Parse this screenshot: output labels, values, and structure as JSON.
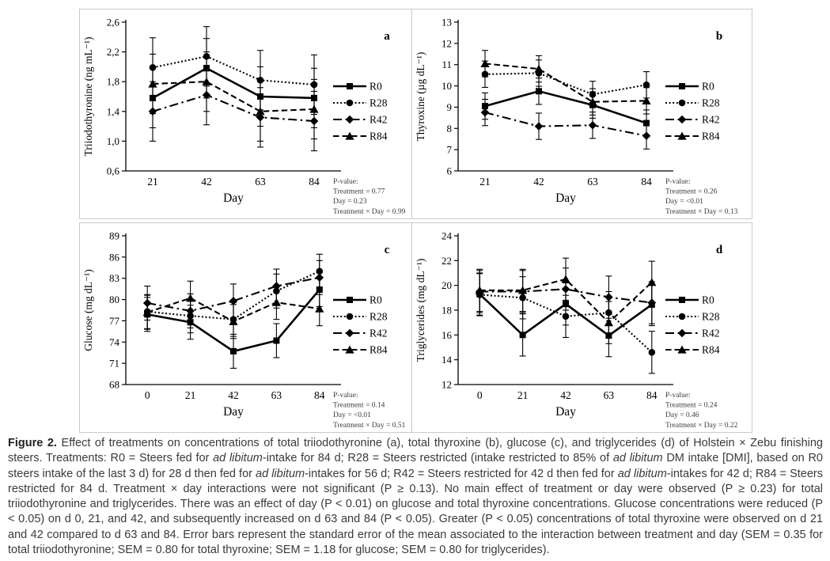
{
  "colors": {
    "ink": "#000000",
    "panel_border": "#c9c9c9",
    "caption_text": "#3a3a3a",
    "pvalue_text": "#3c3c3c",
    "background": "#ffffff"
  },
  "figure": {
    "caption_runs": [
      {
        "text": "Figure 2.",
        "bold": true
      },
      {
        "text": " Effect of treatments on concentrations of total triiodothyronine (a), total thyroxine (b), glucose (c), and triglycerides (d) of Holstein × Zebu finishing steers. Treatments: R0 = Steers fed for "
      },
      {
        "text": "ad libitum",
        "italic": true
      },
      {
        "text": "-intake for 84 d; R28 = Steers restricted (intake restricted to 85% of "
      },
      {
        "text": "ad libitum",
        "italic": true
      },
      {
        "text": " DM intake [DMI], based on R0 steers intake of the last 3 d) for 28 d then fed for "
      },
      {
        "text": "ad libitum",
        "italic": true
      },
      {
        "text": "-intakes for 56 d; R42 = Steers restricted for 42 d then fed for "
      },
      {
        "text": "ad libitum",
        "italic": true
      },
      {
        "text": "-intakes for 42 d; R84 = Steers restricted for 84 d. Treatment × day interactions were not significant (P ≥ 0.13). No main effect of treatment or day were observed (P ≥ 0.23) for total triiodothyronine and triglycerides. There was an effect of day (P < 0.01) on glucose and total thyroxine concentrations. Glucose concentrations were reduced (P < 0.05) on d 0, 21, and 42, and subsequently increased on d 63 and 84 (P < 0.05). Greater (P < 0.05) concentrations of total thyroxine were observed on d 21 and 42 compared to d 63 and 84. Error bars represent the standard error of the mean associated to the interaction between treatment and day (SEM = 0.35 for total triiodothyronine; SEM = 0.80 for total thyroxine; SEM = 1.18 for glucose; SEM = 0.80 for triglycerides)."
      }
    ]
  },
  "chart_data": [
    {
      "type": "line",
      "letter": "a",
      "ylabel": "Triiodothyronine (ng mL⁻¹)",
      "xlabel": "Day",
      "categories": [
        "21",
        "42",
        "63",
        "84"
      ],
      "ylim": [
        0.6,
        2.6
      ],
      "yticks": [
        {
          "v": 0.6,
          "label": "0,6"
        },
        {
          "v": 1.0,
          "label": "1,0"
        },
        {
          "v": 1.4,
          "label": "1,4"
        },
        {
          "v": 1.8,
          "label": "1,8"
        },
        {
          "v": 2.2,
          "label": "2,2"
        },
        {
          "v": 2.6,
          "label": "2,6"
        }
      ],
      "error_bar": 0.4,
      "grid": false,
      "legend_position": "right",
      "series": [
        {
          "name": "R0",
          "marker": "square",
          "line": "solid",
          "values": [
            1.58,
            1.98,
            1.6,
            1.58
          ]
        },
        {
          "name": "R28",
          "marker": "circle",
          "line": "dotted",
          "values": [
            1.99,
            2.14,
            1.82,
            1.76
          ]
        },
        {
          "name": "R42",
          "marker": "diamond",
          "line": "dashdot",
          "values": [
            1.4,
            1.62,
            1.32,
            1.27
          ]
        },
        {
          "name": "R84",
          "marker": "triangle",
          "line": "dashed",
          "values": [
            1.77,
            1.8,
            1.4,
            1.43
          ]
        }
      ],
      "pvalues": [
        "P-value:",
        "Treatment = 0.77",
        "Day = 0.23",
        "Treatment × Day = 0.99"
      ]
    },
    {
      "type": "line",
      "letter": "b",
      "ylabel": "Thyroxine (µg dL⁻¹)",
      "xlabel": "Day",
      "categories": [
        "21",
        "42",
        "63",
        "84"
      ],
      "ylim": [
        6,
        13
      ],
      "yticks": [
        {
          "v": 6,
          "label": "6"
        },
        {
          "v": 7,
          "label": "7"
        },
        {
          "v": 8,
          "label": "8"
        },
        {
          "v": 9,
          "label": "9"
        },
        {
          "v": 10,
          "label": "10"
        },
        {
          "v": 11,
          "label": "11"
        },
        {
          "v": 12,
          "label": "12"
        },
        {
          "v": 13,
          "label": "13"
        }
      ],
      "error_bar": 0.62,
      "grid": false,
      "legend_position": "right",
      "series": [
        {
          "name": "R0",
          "marker": "square",
          "line": "solid",
          "values": [
            9.05,
            9.75,
            9.1,
            8.25
          ]
        },
        {
          "name": "R28",
          "marker": "circle",
          "line": "dotted",
          "values": [
            10.55,
            10.6,
            9.6,
            10.05
          ]
        },
        {
          "name": "R42",
          "marker": "diamond",
          "line": "dashdot",
          "values": [
            8.75,
            8.1,
            8.15,
            7.65
          ]
        },
        {
          "name": "R84",
          "marker": "triangle",
          "line": "dashed",
          "values": [
            11.05,
            10.8,
            9.25,
            9.3
          ]
        }
      ],
      "pvalues": [
        "P-value:",
        "Treatment = 0.26",
        "Day = <0.01",
        "Treatment × Day = 0.13"
      ]
    },
    {
      "type": "line",
      "letter": "c",
      "ylabel": "Glucose (mg dL⁻¹)",
      "xlabel": "Day",
      "categories": [
        "0",
        "21",
        "42",
        "63",
        "84"
      ],
      "ylim": [
        68,
        89
      ],
      "yticks": [
        {
          "v": 68,
          "label": "68"
        },
        {
          "v": 71,
          "label": "71"
        },
        {
          "v": 74,
          "label": "74"
        },
        {
          "v": 77,
          "label": "77"
        },
        {
          "v": 80,
          "label": "80"
        },
        {
          "v": 83,
          "label": "83"
        },
        {
          "v": 86,
          "label": "86"
        },
        {
          "v": 89,
          "label": "89"
        }
      ],
      "error_bar": 2.4,
      "grid": false,
      "legend_position": "right",
      "series": [
        {
          "name": "R0",
          "marker": "square",
          "line": "solid",
          "values": [
            77.9,
            76.8,
            72.7,
            74.2,
            81.4
          ]
        },
        {
          "name": "R28",
          "marker": "circle",
          "line": "dotted",
          "values": [
            78.3,
            77.7,
            77.2,
            81.2,
            84.0
          ]
        },
        {
          "name": "R42",
          "marker": "diamond",
          "line": "dashdot",
          "values": [
            79.5,
            78.4,
            79.8,
            81.9,
            83.1
          ]
        },
        {
          "name": "R84",
          "marker": "triangle",
          "line": "dashed",
          "values": [
            78.2,
            80.2,
            76.9,
            79.6,
            78.7
          ]
        }
      ],
      "pvalues": [
        "P-value:",
        "Treatment = 0.14",
        "Day = <0.01",
        "Treatment × Day = 0.51"
      ]
    },
    {
      "type": "line",
      "letter": "d",
      "ylabel": "Triglycerides (mg dL⁻¹)",
      "xlabel": "Day",
      "categories": [
        "0",
        "21",
        "42",
        "63",
        "84"
      ],
      "ylim": [
        12,
        24
      ],
      "yticks": [
        {
          "v": 12,
          "label": "12"
        },
        {
          "v": 14,
          "label": "14"
        },
        {
          "v": 16,
          "label": "16"
        },
        {
          "v": 18,
          "label": "18"
        },
        {
          "v": 20,
          "label": "20"
        },
        {
          "v": 22,
          "label": "22"
        },
        {
          "v": 24,
          "label": "24"
        }
      ],
      "error_bar": 1.7,
      "grid": false,
      "legend_position": "right",
      "series": [
        {
          "name": "R0",
          "marker": "square",
          "line": "solid",
          "values": [
            19.3,
            16.0,
            18.5,
            15.95,
            18.45
          ]
        },
        {
          "name": "R28",
          "marker": "circle",
          "line": "dotted",
          "values": [
            19.25,
            19.0,
            17.5,
            17.8,
            14.6
          ]
        },
        {
          "name": "R42",
          "marker": "diamond",
          "line": "dashdot",
          "values": [
            19.5,
            19.5,
            19.7,
            19.05,
            18.6
          ]
        },
        {
          "name": "R84",
          "marker": "triangle",
          "line": "dashed",
          "values": [
            19.6,
            19.6,
            20.5,
            17.0,
            20.25
          ]
        }
      ],
      "pvalues": [
        "P-value:",
        "Treatment = 0.24",
        "Day = 0.46",
        "Treatment × Day = 0.22"
      ]
    }
  ]
}
